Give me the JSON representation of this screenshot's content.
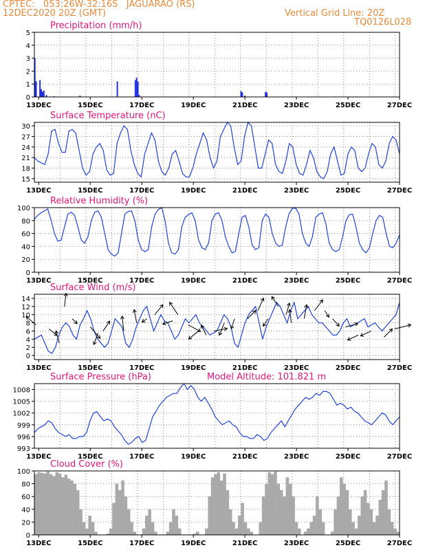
{
  "header": {
    "line1": "CPTEC:   053:26W-32:16S   JAGUARAO (RS)",
    "line2": "12DEC2020 20Z (GMT)",
    "vgrid": "Vertical Grid Line: 20Z",
    "code": "TQ0126L028"
  },
  "colors": {
    "line": "#2040e0",
    "bar": "#2030e0",
    "cloud": "#a9a9a9",
    "title": "#e0157a",
    "header": "#e8893a"
  },
  "chart_data": [
    {
      "type": "bar",
      "title": "Precipitation (mm/h)",
      "x_start_day": 12.833,
      "x_end_day": 27,
      "x_ticks": [
        "13DEC",
        "15DEC",
        "17DEC",
        "19DEC",
        "21DEC",
        "23DEC",
        "25DEC",
        "27DEC"
      ],
      "ylim": [
        0,
        5
      ],
      "yticks": [
        0,
        1,
        2,
        3,
        4,
        5
      ],
      "series": [
        {
          "points": [
            [
              12.85,
              3.0
            ],
            [
              12.9,
              1.2
            ],
            [
              13.05,
              1.3
            ],
            [
              13.1,
              0.6
            ],
            [
              13.15,
              0.4
            ],
            [
              13.2,
              0.5
            ],
            [
              13.3,
              0.15
            ],
            [
              13.6,
              0.05
            ],
            [
              14.6,
              0.1
            ],
            [
              16.05,
              1.2
            ],
            [
              16.75,
              1.3
            ],
            [
              16.8,
              1.5
            ],
            [
              16.85,
              1.2
            ],
            [
              16.9,
              0.15
            ],
            [
              20.85,
              0.45
            ],
            [
              20.9,
              0.35
            ],
            [
              21.0,
              0.1
            ],
            [
              21.8,
              0.4
            ],
            [
              21.85,
              0.35
            ],
            [
              23.5,
              0.03
            ],
            [
              24.5,
              0.03
            ],
            [
              25.2,
              0.03
            ],
            [
              26.2,
              0.03
            ]
          ]
        }
      ]
    },
    {
      "type": "line",
      "title": "Surface Temperature (nC)",
      "ylim": [
        14,
        31
      ],
      "yticks": [
        15,
        18,
        21,
        24,
        27,
        30
      ],
      "series": [
        {
          "values": [
            21,
            20,
            19.5,
            19,
            22,
            28.5,
            29,
            25,
            22.5,
            22.5,
            28.5,
            29,
            28,
            23,
            18,
            16,
            17,
            22,
            24,
            25,
            23,
            17.5,
            16,
            16.5,
            25,
            28,
            30,
            29,
            23,
            19,
            16.5,
            15.5,
            22,
            25,
            28,
            26,
            20,
            17,
            16,
            18,
            22,
            23,
            20,
            16.5,
            15.5,
            15.5,
            18,
            22,
            25,
            28,
            26,
            21,
            18,
            20,
            27,
            29,
            31,
            30,
            24,
            19,
            20,
            27,
            31,
            30,
            24,
            18,
            18,
            22,
            26,
            25,
            19,
            17,
            16.5,
            20,
            25,
            24,
            19,
            16.5,
            16,
            19,
            23,
            21,
            17,
            15.5,
            15,
            17,
            22,
            24,
            20,
            16,
            16.5,
            22,
            24,
            23,
            18,
            17,
            18,
            22,
            25,
            24,
            19,
            18,
            20,
            25,
            27,
            26,
            22
          ]
        }
      ]
    },
    {
      "type": "line",
      "title": "Relative Humidity (%)",
      "ylim": [
        0,
        100
      ],
      "yticks": [
        0,
        20,
        40,
        60,
        80,
        100
      ],
      "series": [
        {
          "values": [
            82,
            88,
            92,
            95,
            98,
            80,
            60,
            48,
            50,
            70,
            90,
            93,
            88,
            70,
            50,
            45,
            55,
            80,
            93,
            95,
            85,
            60,
            35,
            28,
            25,
            30,
            60,
            90,
            94,
            95,
            80,
            50,
            35,
            32,
            35,
            70,
            90,
            97,
            100,
            80,
            45,
            30,
            28,
            35,
            70,
            85,
            89,
            92,
            80,
            50,
            38,
            35,
            45,
            80,
            90,
            92,
            80,
            55,
            40,
            30,
            32,
            60,
            85,
            88,
            70,
            42,
            35,
            38,
            80,
            90,
            85,
            60,
            45,
            40,
            42,
            70,
            90,
            99,
            99,
            90,
            60,
            45,
            40,
            55,
            85,
            90,
            92,
            75,
            45,
            35,
            32,
            35,
            55,
            80,
            89,
            90,
            70,
            45,
            35,
            30,
            38,
            60,
            80,
            88,
            85,
            60,
            40,
            38,
            45,
            58
          ]
        }
      ]
    },
    {
      "type": "line",
      "title": "Surface Wind (m/s)",
      "ylim": [
        -1,
        15
      ],
      "yticks": [
        0,
        2,
        4,
        6,
        8,
        10,
        12,
        14
      ],
      "series": [
        {
          "values": [
            4,
            4.5,
            5,
            3,
            1,
            0.5,
            2,
            5,
            7,
            8,
            7,
            5,
            4,
            7.5,
            9,
            11,
            9,
            6,
            4,
            3,
            2,
            3,
            6,
            9,
            8,
            7,
            3,
            2,
            4,
            7,
            9,
            11,
            12,
            9,
            6,
            8,
            10,
            8.5,
            8,
            6,
            4,
            5,
            7,
            9,
            8,
            9,
            10,
            8,
            7,
            6,
            5,
            5.5,
            6,
            8,
            10,
            9,
            7,
            3,
            2,
            5,
            8,
            10,
            11,
            12,
            8,
            4,
            7,
            9,
            11,
            13,
            12,
            10,
            8,
            11,
            13,
            9,
            10,
            11,
            12,
            10,
            9,
            8,
            8,
            7,
            6,
            5,
            5,
            6,
            8,
            9,
            7,
            7.5,
            8,
            8.5,
            9,
            7,
            7.5,
            8,
            7,
            6,
            7,
            8,
            9,
            10,
            13
          ]
        }
      ],
      "vectors": [
        [
          12.9,
          7.5,
          -1.2,
          1
        ],
        [
          13.4,
          6.5,
          1,
          -0.8
        ],
        [
          13.8,
          3,
          -0.4,
          1.5
        ],
        [
          14,
          12,
          0.2,
          1.6
        ],
        [
          14.3,
          9,
          0.6,
          -0.6
        ],
        [
          15,
          7,
          1.2,
          -1.4
        ],
        [
          15.3,
          5.5,
          -0.5,
          -1.4
        ],
        [
          15.5,
          6,
          0.8,
          1.2
        ],
        [
          16.3,
          6,
          -0.2,
          1.8
        ],
        [
          16.8,
          8,
          -0.3,
          1.6
        ],
        [
          17.2,
          9,
          -0.6,
          -0.4
        ],
        [
          17.5,
          10,
          1,
          1.2
        ],
        [
          18.2,
          8.5,
          -1.2,
          -0.4
        ],
        [
          18.4,
          10,
          -1,
          1.5
        ],
        [
          18.8,
          7.5,
          1.5,
          -0.8
        ],
        [
          19.2,
          6,
          -1.2,
          -1
        ],
        [
          19.5,
          5,
          -0.6,
          1.2
        ],
        [
          19.8,
          6,
          1.6,
          0.3
        ],
        [
          20.2,
          8,
          -0.6,
          -1.5
        ],
        [
          20.6,
          9,
          -0.4,
          -1.2
        ],
        [
          21.1,
          9,
          1,
          1
        ],
        [
          21.5,
          11,
          0.7,
          1.5
        ],
        [
          21.9,
          9,
          -0.6,
          -0.9
        ],
        [
          22.3,
          12,
          -0.8,
          1.2
        ],
        [
          22.6,
          10,
          0.4,
          1.4
        ],
        [
          22.8,
          8,
          -0.2,
          1.6
        ],
        [
          23.3,
          9,
          0.3,
          1.7
        ],
        [
          23.7,
          11,
          1,
          1.3
        ],
        [
          24.1,
          11,
          0.5,
          -0.8
        ],
        [
          24.4,
          9,
          0.8,
          -0.9
        ],
        [
          24.9,
          7,
          1.5,
          0.4
        ],
        [
          25.4,
          5,
          -1.3,
          -0.6
        ],
        [
          25.9,
          6,
          -1.3,
          -0.6
        ],
        [
          26.4,
          4.5,
          1,
          1
        ],
        [
          26.8,
          6.5,
          2,
          0.5
        ]
      ]
    },
    {
      "type": "line",
      "title": "Surface Pressure (hPa)",
      "annotation": "Model Altitude: 101.821 m",
      "ylim": [
        993,
        1009.5
      ],
      "yticks": [
        993,
        996,
        999,
        1002,
        1005,
        1008
      ],
      "series": [
        {
          "values": [
            997,
            998,
            998.5,
            999,
            1000,
            999.5,
            998,
            997,
            996.5,
            996,
            996.5,
            995.5,
            995.5,
            996,
            996,
            997,
            1000,
            1002,
            1002.3,
            1001,
            1000,
            1000.5,
            1000,
            998.5,
            997.5,
            996.5,
            995,
            994,
            994.5,
            995.5,
            996,
            994.5,
            995,
            998,
            1001,
            1002.5,
            1004,
            1005,
            1006,
            1006.5,
            1007,
            1007,
            1008.5,
            1009.5,
            1008,
            1009,
            1008,
            1006,
            1005,
            1006,
            1004.5,
            1003,
            1001,
            1000,
            999,
            999.5,
            1000,
            999,
            998.5,
            997,
            996,
            996,
            995.5,
            995.5,
            996.5,
            996,
            995,
            995.5,
            997,
            998,
            999,
            1000,
            998.5,
            1000,
            1001.5,
            1003,
            1004,
            1005,
            1006,
            1005.5,
            1006,
            1007,
            1006.5,
            1007.5,
            1007.5,
            1007,
            1005.5,
            1004,
            1004.5,
            1004,
            1003,
            1003.5,
            1002.5,
            1002,
            1001,
            1000,
            999.5,
            999,
            1000,
            1001,
            1002,
            1001.5,
            1000,
            999,
            1000,
            1001
          ]
        }
      ]
    },
    {
      "type": "bar",
      "title": "Cloud Cover (%)",
      "ylim": [
        0,
        100
      ],
      "yticks": [
        0,
        20,
        40,
        60,
        80,
        100
      ],
      "series": [
        {
          "values": [
            95,
            98,
            97,
            96,
            99,
            95,
            92,
            98,
            96,
            90,
            94,
            88,
            85,
            80,
            70,
            40,
            20,
            10,
            30,
            20,
            5,
            0,
            0,
            0,
            2,
            10,
            50,
            80,
            70,
            85,
            60,
            40,
            20,
            5,
            0,
            0,
            10,
            30,
            40,
            20,
            5,
            0,
            0,
            0,
            5,
            20,
            40,
            30,
            10,
            0,
            0,
            0,
            0,
            2,
            5,
            0,
            0,
            10,
            60,
            90,
            95,
            98,
            85,
            96,
            70,
            40,
            20,
            10,
            30,
            50,
            20,
            10,
            5,
            0,
            0,
            20,
            60,
            80,
            98,
            95,
            99,
            80,
            70,
            60,
            90,
            80,
            60,
            20,
            10,
            0,
            5,
            10,
            20,
            30,
            60,
            40,
            20,
            0,
            0,
            5,
            40,
            60,
            90,
            80,
            70,
            40,
            20,
            10,
            30,
            60,
            70,
            50,
            40,
            20,
            30,
            55,
            70,
            85,
            40,
            20,
            10,
            5
          ]
        }
      ]
    }
  ]
}
